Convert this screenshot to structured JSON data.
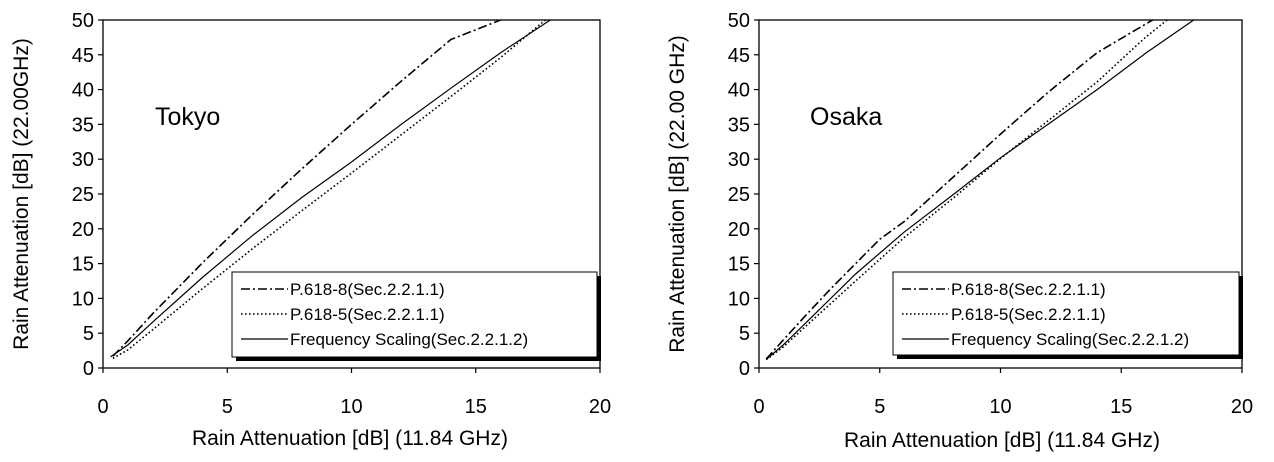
{
  "chart_data": [
    {
      "type": "line",
      "annotation": "Tokyo",
      "xlabel": "Rain Attenuation [dB] (11.84 GHz)",
      "ylabel": "Rain Attenuation [dB] (22.00GHz)",
      "xlim": [
        0,
        20
      ],
      "ylim": [
        0,
        50
      ],
      "xticks": [
        "0",
        "5",
        "10",
        "15",
        "20"
      ],
      "yticks": [
        "0",
        "5",
        "10",
        "15",
        "20",
        "25",
        "30",
        "35",
        "40",
        "45",
        "50"
      ],
      "grid": false,
      "legend_position": "bottom-right",
      "series": [
        {
          "name": "P.618-8(Sec.2.2.1.1)",
          "style": "dash-dot",
          "x": [
            0.4,
            1,
            2,
            4,
            6,
            8,
            10,
            12,
            14,
            16
          ],
          "y": [
            1.7,
            3.9,
            7.8,
            15.1,
            22.0,
            28.6,
            35.0,
            41.2,
            47.2,
            50.0
          ]
        },
        {
          "name": "P.618-5(Sec.2.2.1.1)",
          "style": "dotted",
          "x": [
            0.4,
            1,
            2,
            4,
            6,
            8,
            10,
            12,
            14,
            16,
            17.8
          ],
          "y": [
            1.4,
            2.6,
            5.5,
            11.4,
            17.1,
            22.6,
            28.0,
            33.5,
            39.0,
            44.6,
            50.0
          ]
        },
        {
          "name": "Frequency Scaling(Sec.2.2.1.2)",
          "style": "solid",
          "x": [
            0.3,
            1,
            2,
            4,
            6,
            8,
            10,
            12,
            14,
            16,
            18
          ],
          "y": [
            1.6,
            3.3,
            6.6,
            13.0,
            19.0,
            24.5,
            29.6,
            35.0,
            40.2,
            45.3,
            50.0
          ]
        }
      ]
    },
    {
      "type": "line",
      "annotation": "Osaka",
      "xlabel": "Rain Attenuation [dB] (11.84 GHz)",
      "ylabel": "Rain Attenuation [dB] (22.00 GHz)",
      "xlim": [
        0,
        20
      ],
      "ylim": [
        0,
        50
      ],
      "xticks": [
        "0",
        "5",
        "10",
        "15",
        "20"
      ],
      "yticks": [
        "0",
        "5",
        "10",
        "15",
        "20",
        "25",
        "30",
        "35",
        "40",
        "45",
        "50"
      ],
      "grid": false,
      "legend_position": "bottom-right",
      "series": [
        {
          "name": "P.618-8(Sec.2.2.1.1)",
          "style": "dash-dot",
          "x": [
            0.3,
            1,
            2,
            3,
            4,
            5,
            6,
            8,
            10,
            12,
            14,
            16.3
          ],
          "y": [
            1.3,
            4.0,
            7.8,
            11.5,
            15.0,
            18.5,
            21.0,
            27.3,
            33.6,
            39.7,
            45.3,
            50.0
          ]
        },
        {
          "name": "P.618-5(Sec.2.2.1.1)",
          "style": "dotted",
          "x": [
            0.3,
            1,
            2,
            4,
            6,
            8,
            10,
            12,
            14,
            16,
            16.9
          ],
          "y": [
            1.2,
            3.0,
            6.2,
            12.5,
            18.7,
            24.3,
            30.1,
            35.6,
            41.1,
            47.5,
            50.0
          ]
        },
        {
          "name": "Frequency Scaling(Sec.2.2.1.2)",
          "style": "solid",
          "x": [
            0.3,
            1,
            2,
            4,
            6,
            8,
            10,
            12,
            14,
            16,
            18
          ],
          "y": [
            1.2,
            3.3,
            6.7,
            13.5,
            19.5,
            24.8,
            30.2,
            35.1,
            40.0,
            45.2,
            50.0
          ]
        }
      ]
    }
  ]
}
